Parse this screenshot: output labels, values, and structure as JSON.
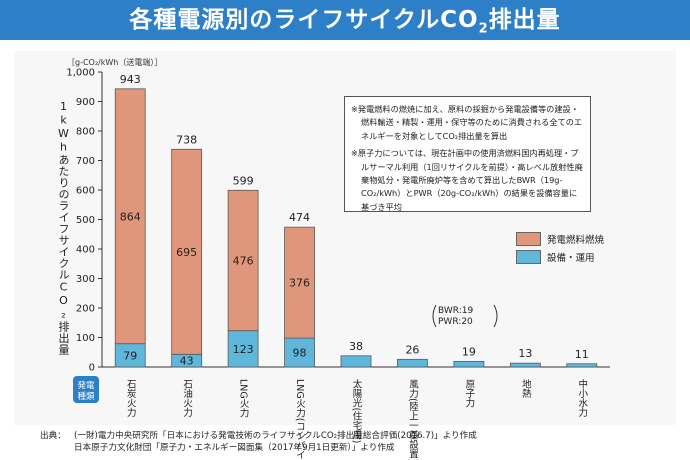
{
  "title": {
    "main": "各種電源別のライフサイクルCO",
    "sub": "2",
    "end": "排出量"
  },
  "unit_label": "［g-CO₂/kWh（送電端）］",
  "axis_label": "1kWhあたりのライフサイクルCO₂排出量",
  "category_tag": "発電種類",
  "note": {
    "line1": "※発電燃料の燃焼に加え、原料の採掘から発電設備等の建設・燃料輸送・精製・運用・保守等のために消費される全てのエネルギーを対象としてCO₂排出量を算出",
    "line2": "※原子力については、現在計画中の使用済燃料国内再処理・プルサーマル利用（1回リサイクルを前提）・高レベル放射性廃棄物処分・発電所廃炉等を含めて算出したBWR（19g-CO₂/kWh）とPWR（20g-CO₂/kWh）の結果を設備容量に基づき平均"
  },
  "bwr_pwr": {
    "bwr": "BWR:19",
    "pwr": "PWR:20"
  },
  "footer": {
    "label": "出典：",
    "line1": "(一財)電力中央研究所「日本における発電技術のライフサイクルCO₂排出量総合評価(2016.7)」より作成",
    "line2": "日本原子力文化財団「原子力・エネルギー図面集（2017年9月1日更新）」より作成"
  },
  "colors": {
    "fuel": "#e0967a",
    "facility": "#5fb7dc",
    "title_bar": "#2d7fc8"
  },
  "chart_data": {
    "type": "bar",
    "stacked": true,
    "categories": [
      "石炭火力",
      "石油火力",
      "LNG火力",
      "LNG火力(コンバインド)",
      "太陽光(住宅用)",
      "風力(陸上一基設置)",
      "原子力",
      "地熱",
      "中小水力"
    ],
    "series": [
      {
        "name": "設備・運用",
        "values": [
          79,
          43,
          123,
          98,
          38,
          26,
          19,
          13,
          11
        ]
      },
      {
        "name": "発電燃料燃焼",
        "values": [
          864,
          695,
          476,
          376,
          0,
          0,
          0,
          0,
          0
        ]
      }
    ],
    "totals": [
      943,
      738,
      599,
      474,
      38,
      26,
      19,
      13,
      11
    ],
    "ylim": [
      0,
      1000
    ],
    "yticks": [
      0,
      100,
      200,
      300,
      400,
      500,
      600,
      700,
      800,
      900,
      1000
    ],
    "ytick_labels": [
      "0",
      "100",
      "200",
      "300",
      "400",
      "500",
      "600",
      "700",
      "800",
      "900",
      "1,000"
    ],
    "ylabel": "1kWhあたりのライフサイクルCO₂排出量",
    "legend": [
      "発電燃料燃焼",
      "設備・運用"
    ],
    "legend_position": "right"
  }
}
